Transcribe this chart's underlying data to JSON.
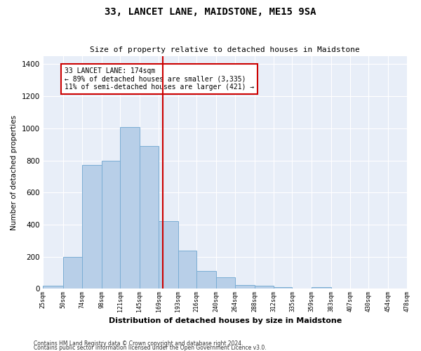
{
  "title": "33, LANCET LANE, MAIDSTONE, ME15 9SA",
  "subtitle": "Size of property relative to detached houses in Maidstone",
  "xlabel": "Distribution of detached houses by size in Maidstone",
  "ylabel": "Number of detached properties",
  "bar_color": "#b8cfe8",
  "bar_edge_color": "#7aadd4",
  "background_color": "#e8eef8",
  "grid_color": "#ffffff",
  "vline_x": 174,
  "vline_color": "#cc0000",
  "annotation_text": "33 LANCET LANE: 174sqm\n← 89% of detached houses are smaller (3,335)\n11% of semi-detached houses are larger (421) →",
  "annotation_box_color": "#cc0000",
  "footer1": "Contains HM Land Registry data © Crown copyright and database right 2024.",
  "footer2": "Contains public sector information licensed under the Open Government Licence v3.0.",
  "bin_edges": [
    25,
    50,
    74,
    98,
    121,
    145,
    169,
    193,
    216,
    240,
    264,
    288,
    312,
    335,
    359,
    383,
    407,
    430,
    454,
    478
  ],
  "bin_counts": [
    20,
    200,
    770,
    800,
    1010,
    890,
    420,
    240,
    110,
    70,
    25,
    20,
    10,
    0,
    10,
    0,
    0,
    0,
    0
  ],
  "ylim": [
    0,
    1450
  ],
  "yticks": [
    0,
    200,
    400,
    600,
    800,
    1000,
    1200,
    1400
  ]
}
